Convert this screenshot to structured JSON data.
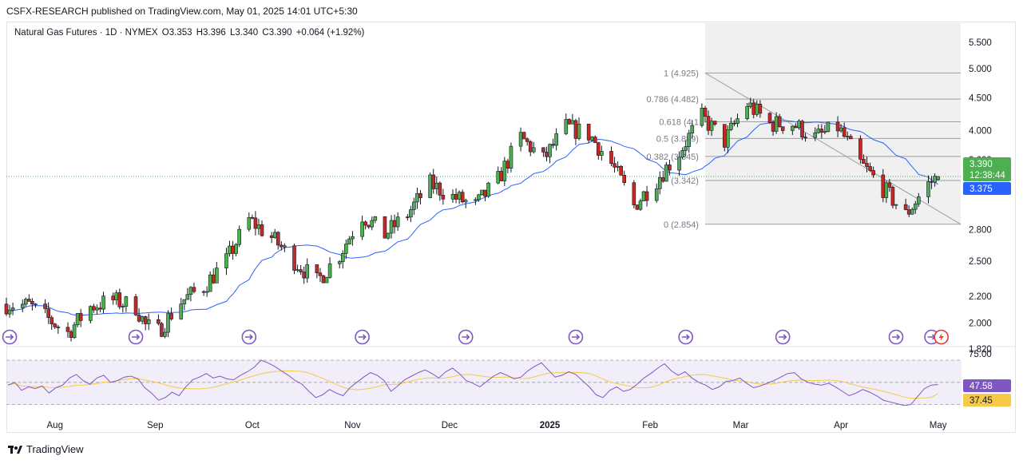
{
  "header": {
    "publisher": "CSFX-RESEARCH published on TradingView.com, May 01, 2025 14:01 UTC+5:30"
  },
  "legend": {
    "symbol": "Natural Gas Futures · 1D · NYMEX",
    "open": "O3.353",
    "high": "H3.396",
    "low": "L3.340",
    "close": "C3.390",
    "change": "+0.064 (+1.92%)"
  },
  "price_badges": {
    "last_price": "3.390",
    "countdown": "12:38:44",
    "ma_value": "3.375"
  },
  "rsi_badges": {
    "rsi": "47.58",
    "rsi_ma": "37.45"
  },
  "colors": {
    "up": "#26a69a",
    "up_body": "#4caf50",
    "down": "#c62828",
    "ma_line": "#2962ff",
    "rsi_line": "#7e57c2",
    "rsi_ma": "#f7c948",
    "last_price_badge": "#4caf50",
    "ma_badge": "#2962ff",
    "fib_zone": "#f0f0f0"
  },
  "brand": {
    "name": "TradingView"
  },
  "chart_data": [
    {
      "type": "candlestick",
      "title": "Natural Gas Futures · 1D · NYMEX",
      "y_scale": "log",
      "y_ticks": [
        "5.500",
        "5.000",
        "4.500",
        "4.000",
        "3.600",
        "2.800",
        "2.500",
        "2.200",
        "2.000",
        "1.820"
      ],
      "x_ticks": [
        "Aug",
        "Sep",
        "Oct",
        "Nov",
        "Dec",
        "2025",
        "Feb",
        "Mar",
        "Apr",
        "May"
      ],
      "ylim": [
        1.82,
        5.5
      ],
      "close_path": [
        [
          "2024-07-17",
          2.14
        ],
        [
          "2024-07-24",
          2.13
        ],
        [
          "2024-07-31",
          2.01
        ],
        [
          "2024-08-05",
          1.93
        ],
        [
          "2024-08-12",
          2.12
        ],
        [
          "2024-08-19",
          2.17
        ],
        [
          "2024-08-26",
          2.12
        ],
        [
          "2024-08-29",
          1.98
        ],
        [
          "2024-09-02",
          1.94
        ],
        [
          "2024-09-09",
          2.16
        ],
        [
          "2024-09-16",
          2.28
        ],
        [
          "2024-09-23",
          2.5
        ],
        [
          "2024-09-30",
          2.9
        ],
        [
          "2024-10-07",
          2.72
        ],
        [
          "2024-10-14",
          2.5
        ],
        [
          "2024-10-21",
          2.32
        ],
        [
          "2024-10-28",
          2.56
        ],
        [
          "2024-11-04",
          2.95
        ],
        [
          "2024-11-11",
          2.75
        ],
        [
          "2024-11-18",
          2.96
        ],
        [
          "2024-11-25",
          3.3
        ],
        [
          "2024-12-02",
          3.15
        ],
        [
          "2024-12-09",
          3.05
        ],
        [
          "2024-12-16",
          3.35
        ],
        [
          "2024-12-23",
          3.9
        ],
        [
          "2024-12-30",
          3.6
        ],
        [
          "2025-01-06",
          4.05
        ],
        [
          "2025-01-13",
          3.95
        ],
        [
          "2025-01-20",
          3.55
        ],
        [
          "2025-01-27",
          3.05
        ],
        [
          "2025-02-03",
          3.35
        ],
        [
          "2025-02-10",
          3.7
        ],
        [
          "2025-02-17",
          4.2
        ],
        [
          "2025-02-24",
          3.85
        ],
        [
          "2025-03-03",
          4.4
        ],
        [
          "2025-03-10",
          4.1
        ],
        [
          "2025-03-17",
          4.1
        ],
        [
          "2025-03-24",
          3.9
        ],
        [
          "2025-03-31",
          4.05
        ],
        [
          "2025-04-07",
          3.55
        ],
        [
          "2025-04-14",
          3.25
        ],
        [
          "2025-04-21",
          2.95
        ],
        [
          "2025-04-28",
          3.3
        ],
        [
          "2025-05-01",
          3.39
        ]
      ],
      "series": [
        {
          "name": "MA",
          "last": 3.375
        }
      ],
      "last": {
        "open": 3.353,
        "high": 3.396,
        "low": 3.34,
        "close": 3.39,
        "change": 0.064,
        "change_pct": 1.92
      },
      "fibonacci": [
        {
          "label": "1 (4.925)",
          "level": 1,
          "price": 4.925
        },
        {
          "label": "0.786 (4.482)",
          "level": 0.786,
          "price": 4.482
        },
        {
          "label": "0.618 (4.1",
          "level": 0.618,
          "price": 4.13
        },
        {
          "label": "0.5 (3.889)",
          "level": 0.5,
          "price": 3.889
        },
        {
          "label": "0.382 (3.645)",
          "level": 0.382,
          "price": 3.645
        },
        {
          "label": "(3.342)",
          "level": 0.236,
          "price": 3.342
        },
        {
          "label": "0 (2.854)",
          "level": 0,
          "price": 2.854
        }
      ],
      "trendline": {
        "from": [
          "2025-02-18",
          4.925
        ],
        "to": [
          "2025-05-08",
          2.854
        ]
      }
    },
    {
      "type": "line",
      "title": "RSI",
      "y_ticks": [
        "75.00"
      ],
      "series": [
        {
          "name": "RSI",
          "values": [
            47,
            50,
            41,
            45,
            43,
            46,
            38,
            44,
            47,
            55,
            59,
            52,
            48,
            55,
            58,
            50,
            52,
            56,
            57,
            54,
            44,
            38,
            30,
            33,
            39,
            35,
            45,
            53,
            56,
            60,
            55,
            57,
            54,
            53,
            58,
            62,
            67,
            75,
            72,
            68,
            63,
            58,
            52,
            48,
            40,
            33,
            36,
            42,
            38,
            35,
            44,
            50,
            56,
            61,
            58,
            52,
            40,
            46,
            53,
            57,
            61,
            64,
            60,
            55,
            62,
            66,
            60,
            52,
            49,
            45,
            51,
            57,
            61,
            58,
            54,
            56,
            63,
            68,
            72,
            64,
            56,
            58,
            62,
            59,
            52,
            45,
            36,
            33,
            41,
            45,
            40,
            42,
            48,
            55,
            60,
            66,
            71,
            63,
            58,
            62,
            55,
            50,
            47,
            42,
            45,
            51,
            52,
            55,
            49,
            44,
            46,
            49,
            52,
            56,
            60,
            61,
            54,
            50,
            48,
            47,
            49,
            45,
            40,
            35,
            38,
            42,
            39,
            35,
            30,
            28,
            26,
            24,
            25,
            34,
            43,
            47,
            47.58
          ],
          "last": 47.58
        },
        {
          "name": "RSI MA",
          "last": 37.45
        }
      ]
    }
  ]
}
